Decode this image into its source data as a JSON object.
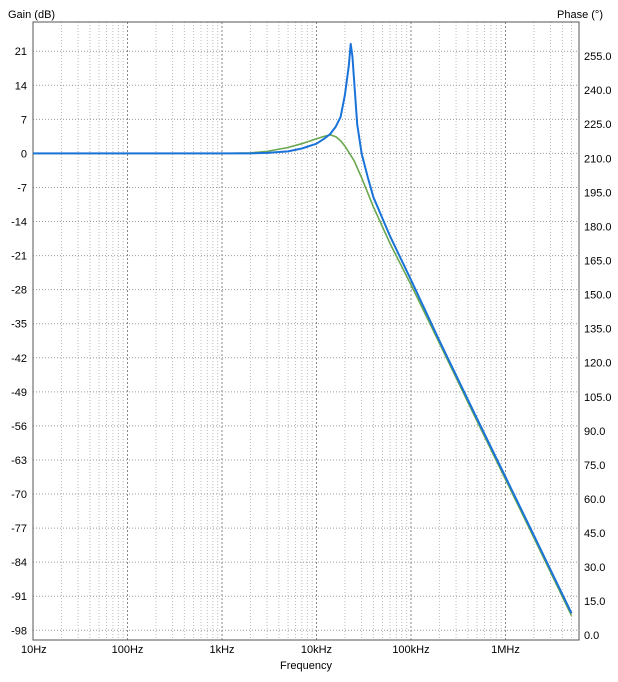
{
  "chart_data": {
    "type": "line",
    "xlabel": "Frequency",
    "ylabel_left": "Gain (dB)",
    "ylabel_right": "Phase (°)",
    "x_scale": "log",
    "xlim": [
      10,
      6000000
    ],
    "ylim_left": [
      -100,
      27
    ],
    "ylim_right": [
      -2.1,
      270
    ],
    "grid": true,
    "x_ticks": [
      {
        "value": 10,
        "label": "10Hz"
      },
      {
        "value": 100,
        "label": "100Hz"
      },
      {
        "value": 1000,
        "label": "1kHz"
      },
      {
        "value": 10000,
        "label": "10kHz"
      },
      {
        "value": 100000,
        "label": "100kHz"
      },
      {
        "value": 1000000,
        "label": "1MHz"
      }
    ],
    "y_ticks_left": [
      21,
      14,
      7,
      0,
      -7,
      -14,
      -21,
      -28,
      -35,
      -42,
      -49,
      -56,
      -63,
      -70,
      -77,
      -84,
      -91,
      -98
    ],
    "y_ticks_left_labels": [
      "21",
      "14",
      "7",
      "0",
      "-7",
      "-14",
      "-21",
      "-28",
      "-35",
      "-42",
      "-49",
      "-56",
      "-63",
      "-70",
      "-77",
      "-84",
      "-91",
      "-98"
    ],
    "y_ticks_right": [
      255,
      240,
      225,
      210,
      195,
      180,
      165,
      150,
      135,
      120,
      105,
      90,
      75,
      60,
      45,
      30,
      15,
      0
    ],
    "y_ticks_right_labels": [
      "255.0",
      "240.0",
      "225.0",
      "210.0",
      "195.0",
      "180.0",
      "165.0",
      "150.0",
      "135.0",
      "120.0",
      "105.0",
      "90.0",
      "75.0",
      "60.0",
      "45.0",
      "30.0",
      "15.0",
      "0.0"
    ],
    "series": [
      {
        "color": "#6aa84f",
        "x": [
          10,
          100,
          1000,
          2000,
          3000,
          5000,
          7000,
          10000,
          12000,
          14000,
          16000,
          18000,
          20000,
          25000,
          30000,
          40000,
          60000,
          100000,
          200000,
          500000,
          1000000,
          2000000,
          5000000
        ],
        "y": [
          0,
          0,
          0,
          0.1,
          0.4,
          1.2,
          2.0,
          3.0,
          3.5,
          3.8,
          3.4,
          2.6,
          1.5,
          -1.5,
          -5.0,
          -11.0,
          -18.5,
          -27,
          -39,
          -55,
          -67,
          -79,
          -95
        ]
      },
      {
        "color": "#1a73d9",
        "x": [
          10,
          100,
          1000,
          2000,
          3000,
          5000,
          7000,
          10000,
          12000,
          14000,
          16000,
          18000,
          20000,
          22000,
          23000,
          24000,
          25000,
          27000,
          30000,
          35000,
          40000,
          60000,
          100000,
          200000,
          500000,
          1000000,
          2000000,
          5000000
        ],
        "y": [
          0,
          0,
          0,
          0,
          0.1,
          0.4,
          1.0,
          2.0,
          3.0,
          4.0,
          5.5,
          7.5,
          12,
          18,
          22.5,
          20,
          15,
          6.0,
          0,
          -5,
          -9,
          -17,
          -26,
          -38.5,
          -54.5,
          -66.5,
          -78.5,
          -94.5
        ]
      }
    ]
  }
}
